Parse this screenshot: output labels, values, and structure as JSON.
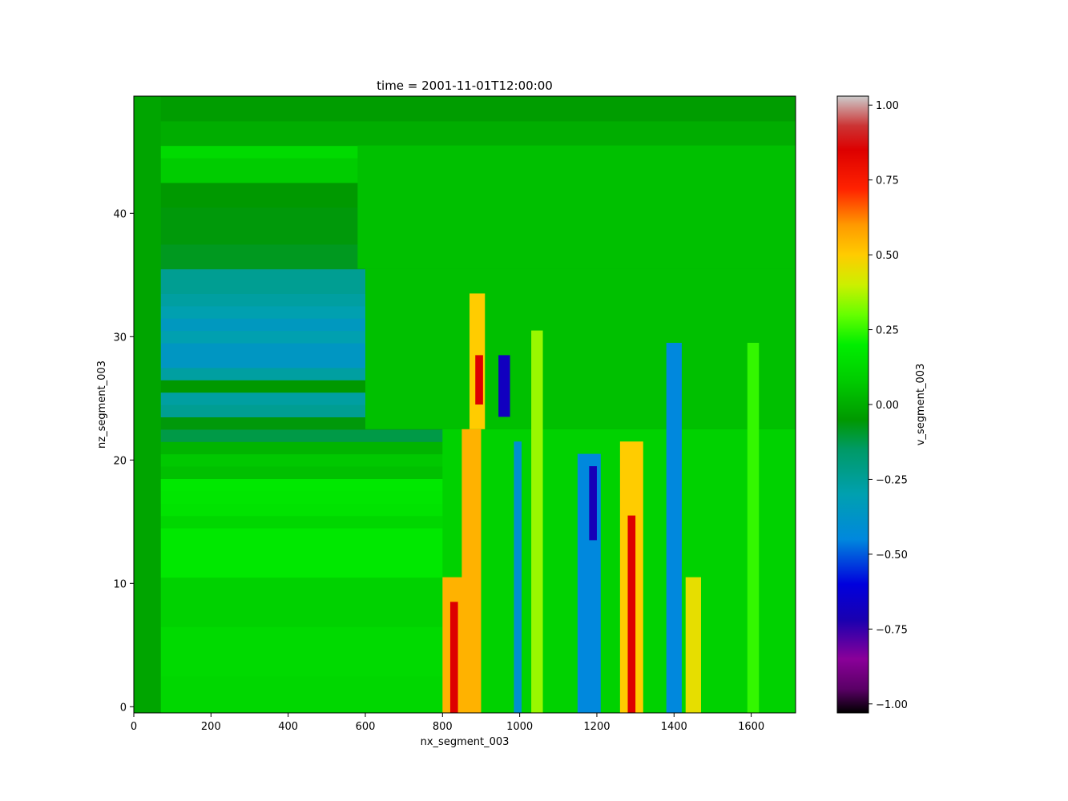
{
  "chart_data": {
    "type": "heatmap",
    "title": "time = 2001-11-01T12:00:00",
    "xlabel": "nx_segment_003",
    "ylabel": "nz_segment_003",
    "xlim": [
      0,
      1715
    ],
    "ylim": [
      -0.5,
      49.5
    ],
    "xticks": [
      0,
      200,
      400,
      600,
      800,
      1000,
      1200,
      1400,
      1600
    ],
    "yticks": [
      0,
      10,
      20,
      30,
      40
    ],
    "colorbar": {
      "label": "v_segment_003",
      "range": [
        -1.03,
        1.03
      ],
      "ticks": [
        1.0,
        0.75,
        0.5,
        0.25,
        0.0,
        -0.25,
        -0.5,
        -0.75,
        -1.0
      ],
      "tick_labels": [
        "1.00",
        "0.75",
        "0.50",
        "0.25",
        "0.00",
        "−0.25",
        "−0.50",
        "−0.75",
        "−1.00"
      ],
      "colormap": "nipy_spectral-like",
      "stops": [
        {
          "v": -1.03,
          "color": "#000000"
        },
        {
          "v": -0.95,
          "color": "#5a0066"
        },
        {
          "v": -0.85,
          "color": "#8a0099"
        },
        {
          "v": -0.72,
          "color": "#1a00b0"
        },
        {
          "v": -0.6,
          "color": "#0000dd"
        },
        {
          "v": -0.45,
          "color": "#0088dd"
        },
        {
          "v": -0.3,
          "color": "#00a0b0"
        },
        {
          "v": -0.15,
          "color": "#009a66"
        },
        {
          "v": -0.05,
          "color": "#009900"
        },
        {
          "v": 0.08,
          "color": "#00cc00"
        },
        {
          "v": 0.2,
          "color": "#00ee00"
        },
        {
          "v": 0.3,
          "color": "#66ff00"
        },
        {
          "v": 0.4,
          "color": "#ccf000"
        },
        {
          "v": 0.5,
          "color": "#ffcc00"
        },
        {
          "v": 0.6,
          "color": "#ff9900"
        },
        {
          "v": 0.72,
          "color": "#ff2200"
        },
        {
          "v": 0.85,
          "color": "#dd0000"
        },
        {
          "v": 0.93,
          "color": "#cc3333"
        },
        {
          "v": 1.03,
          "color": "#cccccc"
        }
      ]
    },
    "layers": [
      {
        "z0": -0.5,
        "z1": 0.5,
        "v": 0.12
      },
      {
        "z0": 0.5,
        "z1": 2.5,
        "v": 0.12
      },
      {
        "z0": 2.5,
        "z1": 4.5,
        "v": 0.13
      },
      {
        "z0": 4.5,
        "z1": 6.5,
        "v": 0.13
      },
      {
        "z0": 6.5,
        "z1": 7.5,
        "v": 0.1
      },
      {
        "z0": 7.5,
        "z1": 8.5,
        "v": 0.1
      },
      {
        "z0": 8.5,
        "z1": 10.5,
        "v": 0.1
      },
      {
        "z0": 10.5,
        "z1": 12.5,
        "v": 0.18
      },
      {
        "z0": 12.5,
        "z1": 14.5,
        "v": 0.18
      },
      {
        "z0": 14.5,
        "z1": 15.5,
        "v": 0.12
      },
      {
        "z0": 15.5,
        "z1": 16.5,
        "v": 0.16
      },
      {
        "z0": 16.5,
        "z1": 17.5,
        "v": 0.17
      },
      {
        "z0": 17.5,
        "z1": 18.5,
        "v": 0.18
      },
      {
        "z0": 18.5,
        "z1": 19.5,
        "v": 0.05
      },
      {
        "z0": 19.5,
        "z1": 20.5,
        "v": 0.07
      },
      {
        "z0": 20.5,
        "z1": 21.5,
        "v": 0.02
      },
      {
        "z0": 21.5,
        "z1": 22.5,
        "v": -0.12
      },
      {
        "z0": 22.5,
        "z1": 23.5,
        "v": -0.06
      },
      {
        "z0": 23.5,
        "z1": 24.5,
        "v": -0.24
      },
      {
        "z0": 24.5,
        "z1": 25.5,
        "v": -0.27
      },
      {
        "z0": 25.5,
        "z1": 26.5,
        "v": -0.05
      },
      {
        "z0": 26.5,
        "z1": 27.5,
        "v": -0.27
      },
      {
        "z0": 27.5,
        "z1": 28.5,
        "v": -0.36
      },
      {
        "z0": 28.5,
        "z1": 29.5,
        "v": -0.36
      },
      {
        "z0": 29.5,
        "z1": 30.5,
        "v": -0.3
      },
      {
        "z0": 30.5,
        "z1": 31.5,
        "v": -0.35
      },
      {
        "z0": 31.5,
        "z1": 32.5,
        "v": -0.3
      },
      {
        "z0": 32.5,
        "z1": 33.5,
        "v": -0.27
      },
      {
        "z0": 33.5,
        "z1": 35.5,
        "v": -0.24
      },
      {
        "z0": 35.5,
        "z1": 37.5,
        "v": -0.08
      },
      {
        "z0": 37.5,
        "z1": 40.5,
        "v": -0.06
      },
      {
        "z0": 40.5,
        "z1": 42.5,
        "v": -0.05
      },
      {
        "z0": 42.5,
        "z1": 44.5,
        "v": 0.08
      },
      {
        "z0": 44.5,
        "z1": 45.5,
        "v": 0.13
      },
      {
        "z0": 45.5,
        "z1": 47.5,
        "v": 0.0
      },
      {
        "z0": 47.5,
        "z1": 49.5,
        "v": -0.04
      }
    ],
    "background_regions": [
      {
        "x0": 0,
        "x1": 70,
        "z0": -0.5,
        "z1": 49.5,
        "v": -0.02
      },
      {
        "x0": 580,
        "x1": 1715,
        "z0": 35.5,
        "z1": 45.5,
        "v": 0.05
      },
      {
        "x0": 600,
        "x1": 1715,
        "z0": 22.5,
        "z1": 35.5,
        "v": 0.05
      },
      {
        "x0": 800,
        "x1": 1715,
        "z0": -0.5,
        "z1": 22.5,
        "v": 0.1
      }
    ],
    "features": [
      {
        "x0": 800,
        "x1": 870,
        "z0": -0.5,
        "z1": 10.5,
        "v": 0.55
      },
      {
        "x0": 820,
        "x1": 840,
        "z0": -0.5,
        "z1": 8.5,
        "v": 0.85
      },
      {
        "x0": 850,
        "x1": 900,
        "z0": -0.5,
        "z1": 22.5,
        "v": 0.55
      },
      {
        "x0": 870,
        "x1": 910,
        "z0": 22.5,
        "z1": 33.5,
        "v": 0.5
      },
      {
        "x0": 885,
        "x1": 905,
        "z0": 24.5,
        "z1": 28.5,
        "v": 0.85
      },
      {
        "x0": 945,
        "x1": 975,
        "z0": 23.5,
        "z1": 28.5,
        "v": -0.68
      },
      {
        "x0": 985,
        "x1": 1005,
        "z0": -0.5,
        "z1": 21.5,
        "v": -0.4
      },
      {
        "x0": 1030,
        "x1": 1060,
        "z0": -0.5,
        "z1": 30.5,
        "v": 0.35
      },
      {
        "x0": 1150,
        "x1": 1210,
        "z0": -0.5,
        "z1": 20.5,
        "v": -0.45
      },
      {
        "x0": 1180,
        "x1": 1200,
        "z0": 13.5,
        "z1": 19.5,
        "v": -0.7
      },
      {
        "x0": 1260,
        "x1": 1320,
        "z0": -0.5,
        "z1": 21.5,
        "v": 0.5
      },
      {
        "x0": 1280,
        "x1": 1300,
        "z0": -0.5,
        "z1": 15.5,
        "v": 0.85
      },
      {
        "x0": 1380,
        "x1": 1420,
        "z0": -0.5,
        "z1": 29.5,
        "v": -0.45
      },
      {
        "x0": 1430,
        "x1": 1470,
        "z0": -0.5,
        "z1": 10.5,
        "v": 0.45
      },
      {
        "x0": 1590,
        "x1": 1620,
        "z0": -0.5,
        "z1": 29.5,
        "v": 0.25
      }
    ]
  }
}
